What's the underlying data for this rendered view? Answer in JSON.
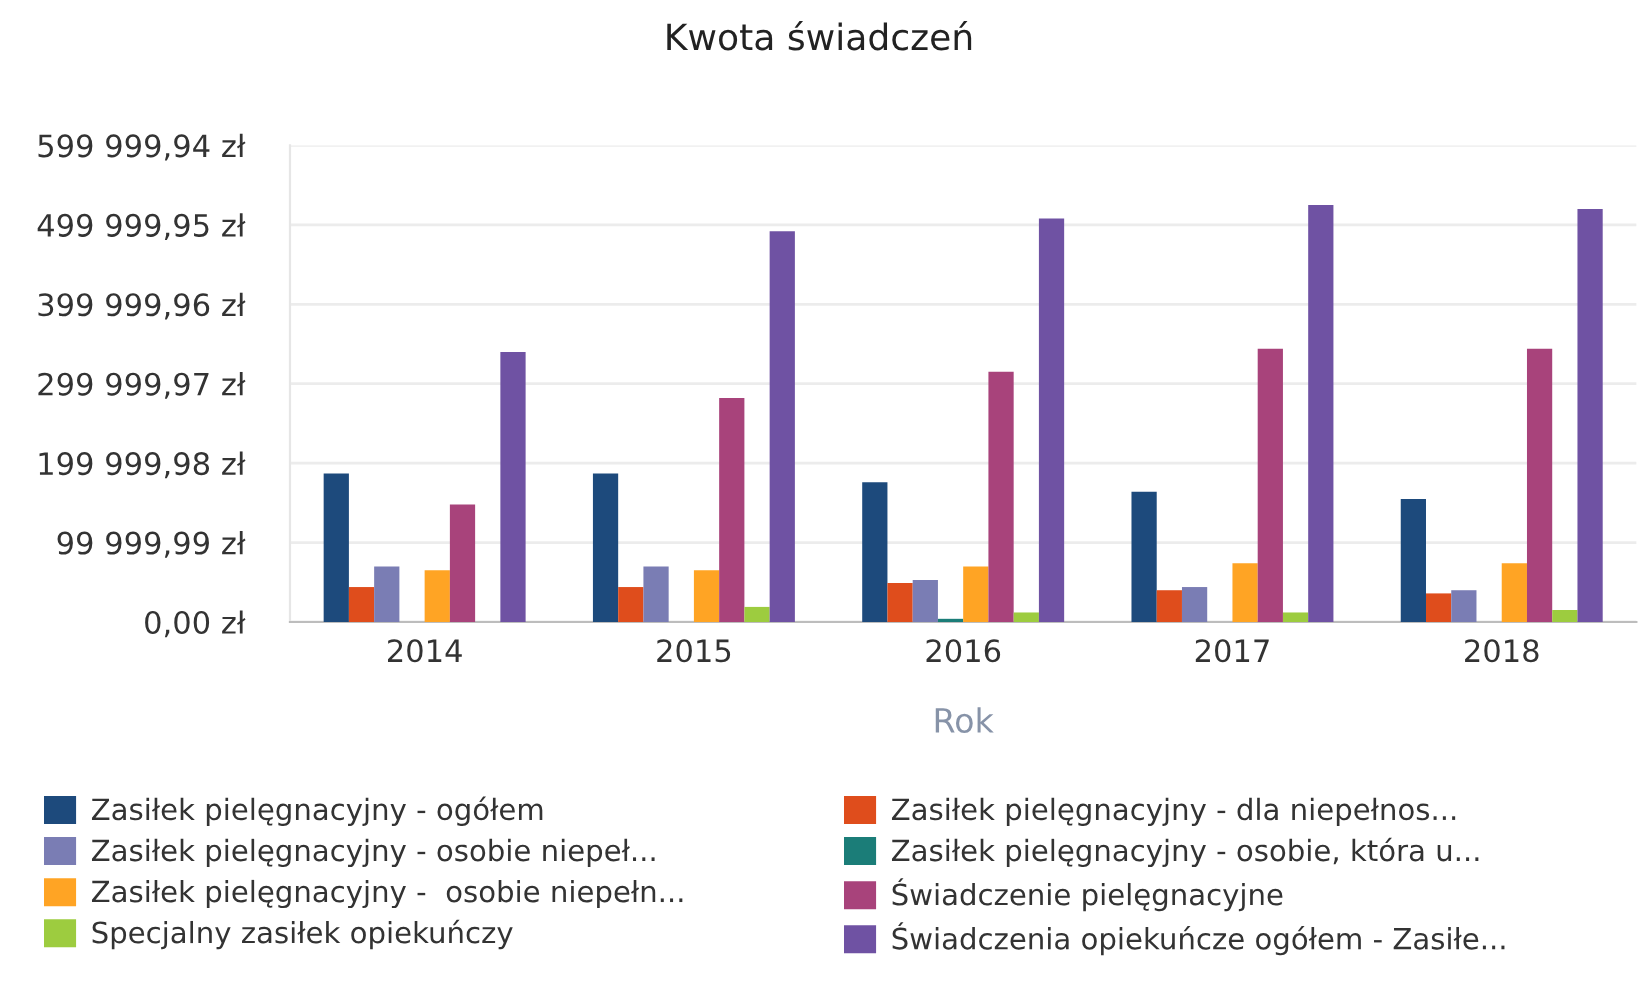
{
  "chart_data": {
    "type": "bar",
    "title": "Kwota świadczeń",
    "xlabel": "Rok",
    "categories": [
      "2014",
      "2015",
      "2016",
      "2017",
      "2018"
    ],
    "series": [
      {
        "name": "Zasiłek pielęgnacyjny - ogółem",
        "color": "#1d4a7c",
        "values": [
          187000,
          187000,
          176000,
          164000,
          155000
        ]
      },
      {
        "name": "Zasiłek pielęgnacyjny - dla niepełnos...",
        "color": "#df4d1c",
        "values": [
          44000,
          44000,
          49000,
          40000,
          36000
        ]
      },
      {
        "name": "Zasiłek pielęgnacyjny - osobie niepeł...",
        "color": "#7a7db4",
        "values": [
          70000,
          70000,
          53000,
          44000,
          40000
        ]
      },
      {
        "name": "Zasiłek pielęgnacyjny - osobie, która u...",
        "color": "#1b7d78",
        "values": [
          null,
          null,
          4000,
          null,
          null
        ]
      },
      {
        "name": "Zasiłek pielęgnacyjny -  osobie niepełn...",
        "color": "#ffa424",
        "values": [
          65000,
          65000,
          70000,
          74000,
          74000
        ]
      },
      {
        "name": "Świadczenie pielęgnacyjne",
        "color": "#a8437b",
        "values": [
          148000,
          282000,
          315000,
          344000,
          344000
        ]
      },
      {
        "name": "Specjalny zasiłek opiekuńczy",
        "color": "#9dcc3f",
        "values": [
          null,
          19000,
          12000,
          12000,
          15000
        ]
      },
      {
        "name": "Świadczenia opiekuńcze ogółem - Zasiłe...",
        "color": "#6f52a3",
        "values": [
          340000,
          492000,
          508000,
          525000,
          520000
        ]
      }
    ],
    "ylim": [
      0,
      599999.94
    ],
    "yticks": [
      {
        "value": 0,
        "label": "0,00 zł"
      },
      {
        "value": 99999.99,
        "label": "99 999,99 zł"
      },
      {
        "value": 199999.98,
        "label": "199 999,98 zł"
      },
      {
        "value": 299999.97,
        "label": "299 999,97 zł"
      },
      {
        "value": 399999.96,
        "label": "399 999,96 zł"
      },
      {
        "value": 499999.95,
        "label": "499 999,95 zł"
      },
      {
        "value": 599999.94,
        "label": "599 999,94 zł"
      }
    ],
    "grid": "y",
    "legend": "bottom"
  }
}
